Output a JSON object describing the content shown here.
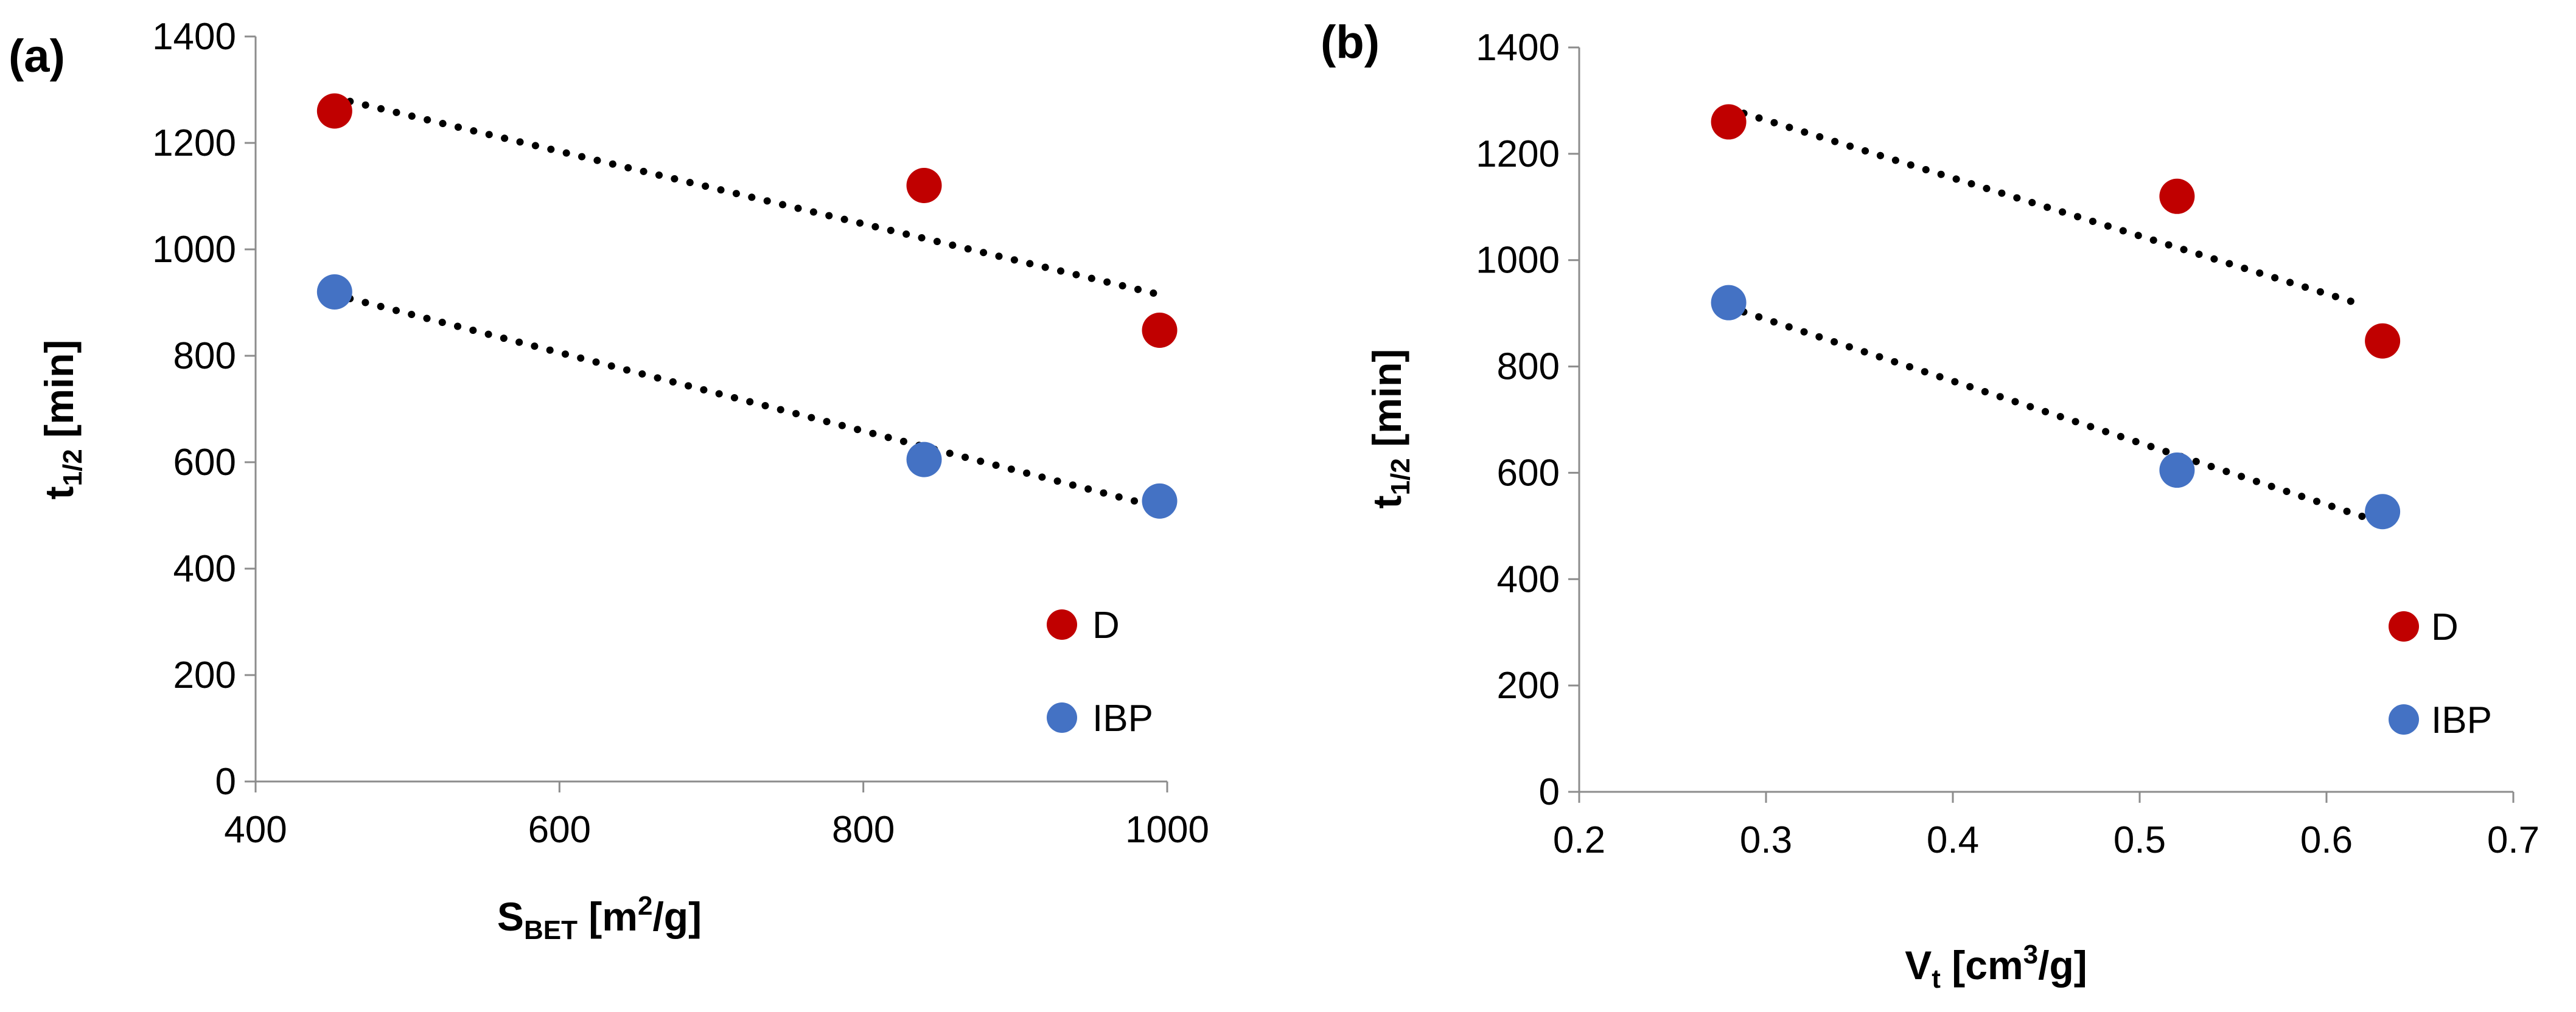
{
  "chart_data": [
    {
      "type": "scatter",
      "panel_label": "(a)",
      "xlabel": {
        "main": "S",
        "sub": "BET",
        "rest": " [m",
        "sup": "2",
        "end": "/g]"
      },
      "ylabel": {
        "main": "t",
        "sub": "1/2",
        "rest": " [min]"
      },
      "xlim": [
        400,
        1000
      ],
      "ylim": [
        0,
        1400
      ],
      "xticks": [
        400,
        600,
        800,
        1000
      ],
      "xtick_labels": [
        "400",
        "600",
        "800",
        "1000"
      ],
      "yticks": [
        0,
        200,
        400,
        600,
        800,
        1000,
        1200,
        1400
      ],
      "ytick_labels": [
        "0",
        "200",
        "400",
        "600",
        "800",
        "1000",
        "1200",
        "1400"
      ],
      "grid": false,
      "legend_position": "right",
      "series": [
        {
          "name": "D",
          "color": "#C00000",
          "x": [
            452,
            840,
            995
          ],
          "y": [
            1260,
            1120,
            848
          ],
          "trend": {
            "x": [
              452,
              995
            ],
            "y": [
              1285,
              915
            ]
          }
        },
        {
          "name": "IBP",
          "color": "#4472C4",
          "x": [
            452,
            840,
            995
          ],
          "y": [
            920,
            605,
            527
          ],
          "trend": {
            "x": [
              452,
              995
            ],
            "y": [
              915,
              515
            ]
          }
        }
      ]
    },
    {
      "type": "scatter",
      "panel_label": "(b)",
      "xlabel": {
        "main": "V",
        "sub": "t",
        "rest": " [cm",
        "sup": "3",
        "end": "/g]"
      },
      "ylabel": {
        "main": "t",
        "sub": "1/2",
        "rest": " [min]"
      },
      "xlim": [
        0.2,
        0.7
      ],
      "ylim": [
        0,
        1400
      ],
      "xticks": [
        0.2,
        0.3,
        0.4,
        0.5,
        0.6,
        0.7
      ],
      "xtick_labels": [
        "0.2",
        "0.3",
        "0.4",
        "0.5",
        "0.6",
        "0.7"
      ],
      "yticks": [
        0,
        200,
        400,
        600,
        800,
        1000,
        1200,
        1400
      ],
      "ytick_labels": [
        "0",
        "200",
        "400",
        "600",
        "800",
        "1000",
        "1200",
        "1400"
      ],
      "grid": false,
      "legend_position": "right",
      "series": [
        {
          "name": "D",
          "color": "#C00000",
          "x": [
            0.28,
            0.52,
            0.63
          ],
          "y": [
            1260,
            1120,
            848
          ],
          "trend": {
            "x": [
              0.28,
              0.62
            ],
            "y": [
              1285,
              915
            ]
          }
        },
        {
          "name": "IBP",
          "color": "#4472C4",
          "x": [
            0.28,
            0.52,
            0.63
          ],
          "y": [
            920,
            605,
            527
          ],
          "trend": {
            "x": [
              0.28,
              0.62
            ],
            "y": [
              912,
              517
            ]
          }
        }
      ]
    }
  ]
}
